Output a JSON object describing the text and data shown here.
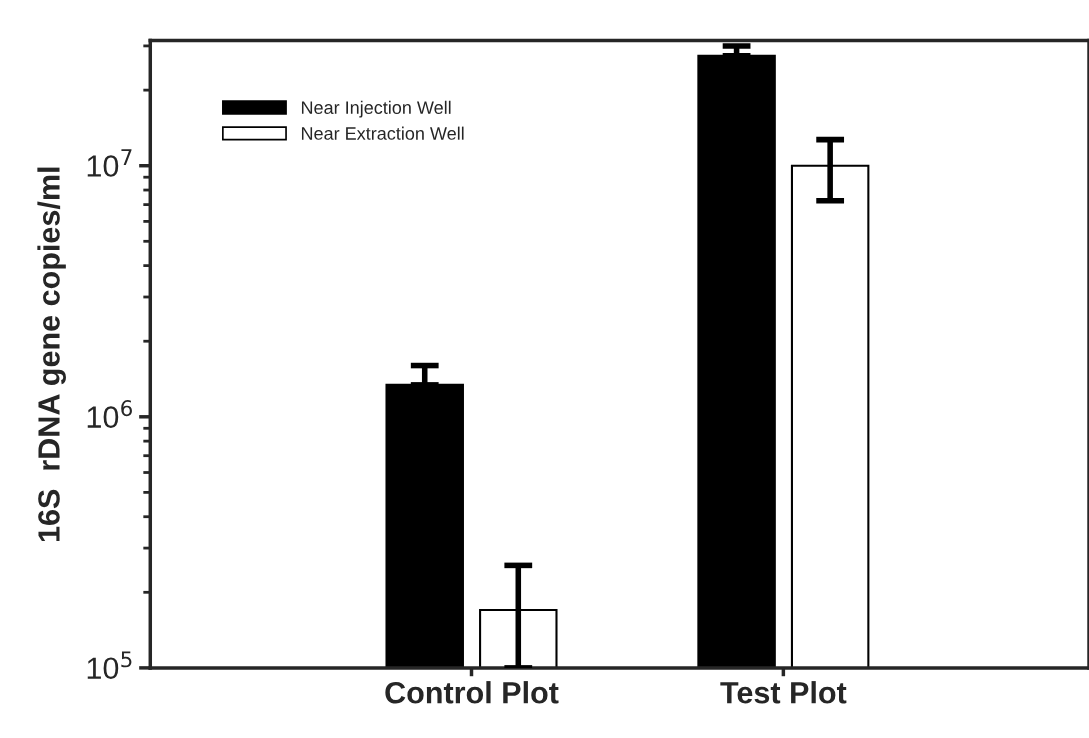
{
  "chart_data": {
    "type": "bar",
    "ylabel": "16S  rDNA gene copies/ml",
    "categories": [
      "Control Plot",
      "Test Plot"
    ],
    "series": [
      {
        "name": "Near Injection Well",
        "color": "#000000",
        "values": [
          1340000,
          27400000
        ],
        "errors": [
          [
            1340000,
            1600000
          ],
          [
            27400000,
            30000000
          ]
        ]
      },
      {
        "name": "Near Extraction Well",
        "color": "#ffffff",
        "values": [
          170000,
          10000000
        ],
        "errors": [
          [
            100000,
            256000
          ],
          [
            7250000,
            12700000
          ]
        ]
      }
    ],
    "log": "y",
    "ylim": [
      100000,
      31500000
    ],
    "yticks": [
      {
        "value": 100000,
        "label": "10$^{5}$"
      },
      {
        "value": 1000000,
        "label": "10$^{6}$"
      },
      {
        "value": 10000000,
        "label": "10$^{7}$"
      }
    ],
    "grid": false,
    "legend": "top left"
  }
}
